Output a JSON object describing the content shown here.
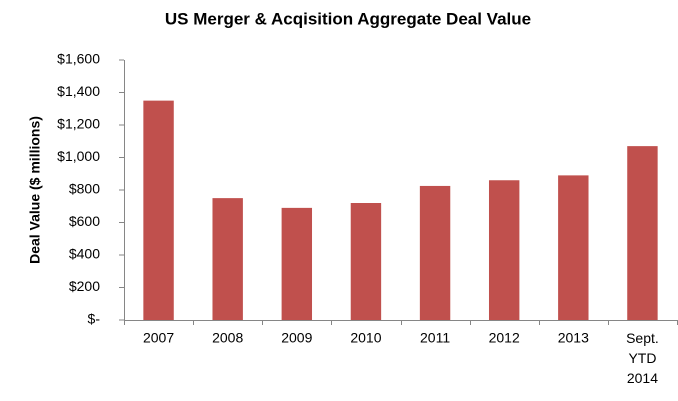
{
  "chart_data": {
    "type": "bar",
    "title": "US Merger & Acqisition Aggregate Deal Value",
    "y_label": "Deal Value ($ millions)",
    "categories": [
      "2007",
      "2008",
      "2009",
      "2010",
      "2011",
      "2012",
      "2013",
      "Sept. YTD 2014"
    ],
    "values": [
      1350,
      750,
      690,
      720,
      825,
      860,
      890,
      1070
    ],
    "color": "#c0504d",
    "ylim": [
      0,
      1600
    ],
    "yticks": [
      {
        "value": 0,
        "label": "$-"
      },
      {
        "value": 200,
        "label": "$200"
      },
      {
        "value": 400,
        "label": "$400"
      },
      {
        "value": 600,
        "label": "$600"
      },
      {
        "value": 800,
        "label": "$800"
      },
      {
        "value": 1000,
        "label": "$1,000"
      },
      {
        "value": 1200,
        "label": "$1,200"
      },
      {
        "value": 1400,
        "label": "$1,400"
      },
      {
        "value": 1600,
        "label": "$1,600"
      }
    ],
    "grid": false
  }
}
